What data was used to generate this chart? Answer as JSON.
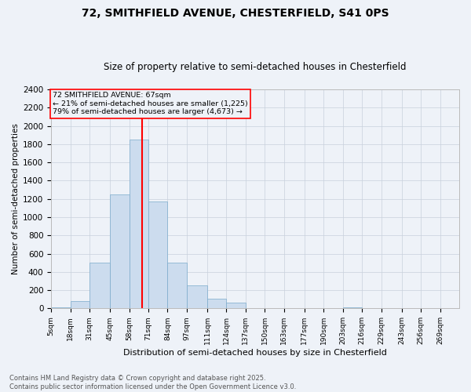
{
  "title1": "72, SMITHFIELD AVENUE, CHESTERFIELD, S41 0PS",
  "title2": "Size of property relative to semi-detached houses in Chesterfield",
  "xlabel": "Distribution of semi-detached houses by size in Chesterfield",
  "ylabel": "Number of semi-detached properties",
  "property_size": 67,
  "property_label": "72 SMITHFIELD AVENUE: 67sqm",
  "pct_smaller": 21,
  "pct_larger": 79,
  "n_smaller": 1225,
  "n_larger": 4673,
  "bin_edges": [
    5,
    18,
    31,
    45,
    58,
    71,
    84,
    97,
    111,
    124,
    137,
    150,
    163,
    177,
    190,
    203,
    216,
    229,
    243,
    256,
    269,
    282
  ],
  "bin_labels": [
    "5sqm",
    "18sqm",
    "31sqm",
    "45sqm",
    "58sqm",
    "71sqm",
    "84sqm",
    "97sqm",
    "111sqm",
    "124sqm",
    "137sqm",
    "150sqm",
    "163sqm",
    "177sqm",
    "190sqm",
    "203sqm",
    "216sqm",
    "229sqm",
    "243sqm",
    "256sqm",
    "269sqm"
  ],
  "bar_heights": [
    15,
    80,
    500,
    1250,
    1850,
    1175,
    500,
    250,
    110,
    60,
    5,
    5,
    5,
    0,
    0,
    15,
    0,
    0,
    0,
    0,
    0
  ],
  "bar_color": "#ccdcee",
  "bar_edge_color": "#7aaacb",
  "grid_color": "#c8d0dc",
  "vline_color": "red",
  "vline_x": 67,
  "box_color": "red",
  "ylim": [
    0,
    2400
  ],
  "yticks": [
    0,
    200,
    400,
    600,
    800,
    1000,
    1200,
    1400,
    1600,
    1800,
    2000,
    2200,
    2400
  ],
  "footer": "Contains HM Land Registry data © Crown copyright and database right 2025.\nContains public sector information licensed under the Open Government Licence v3.0.",
  "bg_color": "#eef2f8"
}
